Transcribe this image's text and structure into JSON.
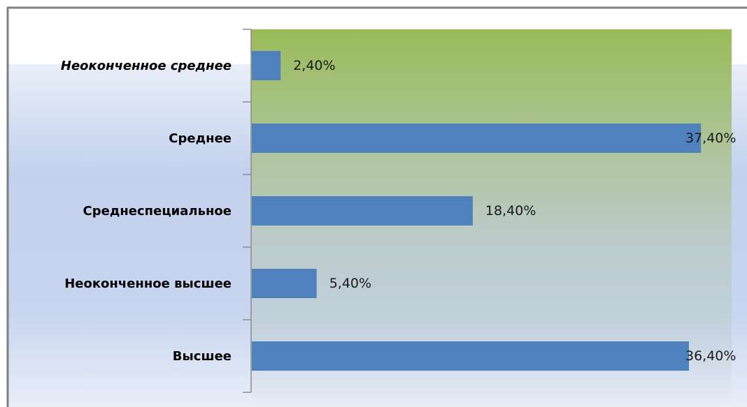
{
  "chart_data": {
    "type": "bar",
    "orientation": "horizontal",
    "categories": [
      "Неоконченное среднее",
      "Среднее",
      "Среднеспециальное",
      "Неоконченное высшее",
      "Высшее"
    ],
    "values": [
      2.4,
      37.4,
      18.4,
      5.4,
      36.4
    ],
    "data_labels": [
      "2,40%",
      "37,40%",
      "18,40%",
      "5,40%",
      "36,40%"
    ],
    "title": "",
    "xlabel": "",
    "ylabel": "",
    "xlim": [
      0,
      40
    ],
    "grid": false,
    "legend": "none",
    "colors": {
      "bar": "#4f81bd",
      "plot_top": "#9bbb59",
      "plot_mid": "#bccbc9",
      "background_light": "#e9eef8",
      "background_blue": "#c3d1ee",
      "axis": "#8c8c8c",
      "frame": "#7f7f7f",
      "label_text": "#000000",
      "value_text": "#1a1a1a"
    }
  }
}
